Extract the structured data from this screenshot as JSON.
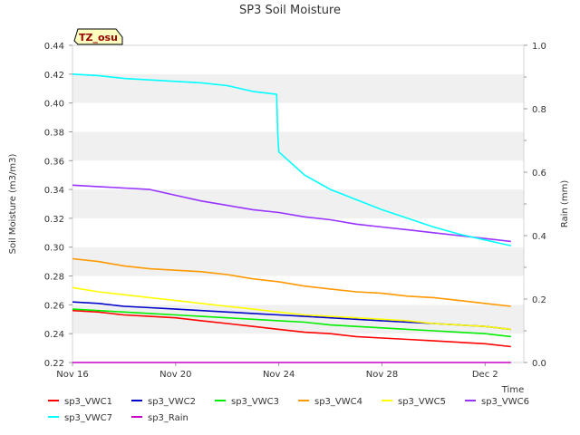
{
  "chart_data": {
    "type": "line",
    "title": "SP3 Soil Moisture",
    "xlabel": "Time",
    "ylabel": "Soil Moisture (m3/m3)",
    "y2label": "Rain (mm)",
    "badge": "TZ_osu",
    "xlim": [
      "2023-11-16",
      "2023-12-03 12:00"
    ],
    "ylim": [
      0.22,
      0.44
    ],
    "y2lim": [
      0.0,
      1.0
    ],
    "x_ticks": [
      "Nov 16",
      "Nov 20",
      "Nov 24",
      "Nov 28",
      "Dec 2"
    ],
    "y_ticks": [
      "0.22",
      "0.24",
      "0.26",
      "0.28",
      "0.30",
      "0.32",
      "0.34",
      "0.36",
      "0.38",
      "0.40",
      "0.42",
      "0.44"
    ],
    "y2_ticks": [
      "0.0",
      "0.2",
      "0.4",
      "0.6",
      "0.8",
      "1.0"
    ],
    "grid": "horizontal-bands",
    "legend_position": "bottom",
    "x": [
      "2023-11-16",
      "2023-11-17",
      "2023-11-18",
      "2023-11-19",
      "2023-11-20",
      "2023-11-21",
      "2023-11-22",
      "2023-11-23",
      "2023-11-24",
      "2023-11-25",
      "2023-11-26",
      "2023-11-27",
      "2023-11-28",
      "2023-11-29",
      "2023-11-30",
      "2023-12-01",
      "2023-12-02",
      "2023-12-03"
    ],
    "series": [
      {
        "name": "sp3_VWC1",
        "color": "#ff0000",
        "axis": "left",
        "values": [
          0.256,
          0.255,
          0.253,
          0.252,
          0.251,
          0.249,
          0.247,
          0.245,
          0.243,
          0.241,
          0.24,
          0.238,
          0.237,
          0.236,
          0.235,
          0.234,
          0.233,
          0.231
        ]
      },
      {
        "name": "sp3_VWC2",
        "color": "#0000cc",
        "axis": "left",
        "values": [
          0.262,
          0.261,
          0.259,
          0.258,
          0.257,
          0.256,
          0.255,
          0.254,
          0.253,
          0.252,
          0.251,
          0.25,
          0.249,
          0.248,
          0.247,
          0.246,
          0.245,
          0.243
        ]
      },
      {
        "name": "sp3_VWC3",
        "color": "#00ee00",
        "axis": "left",
        "values": [
          0.257,
          0.256,
          0.255,
          0.254,
          0.253,
          0.252,
          0.251,
          0.25,
          0.249,
          0.248,
          0.246,
          0.245,
          0.244,
          0.243,
          0.242,
          0.241,
          0.24,
          0.238
        ]
      },
      {
        "name": "sp3_VWC4",
        "color": "#ff9900",
        "axis": "left",
        "values": [
          0.292,
          0.29,
          0.287,
          0.285,
          0.284,
          0.283,
          0.281,
          0.278,
          0.276,
          0.273,
          0.271,
          0.269,
          0.268,
          0.266,
          0.265,
          0.263,
          0.261,
          0.259
        ]
      },
      {
        "name": "sp3_VWC5",
        "color": "#ffff00",
        "axis": "left",
        "values": [
          0.272,
          0.269,
          0.267,
          0.265,
          0.263,
          0.261,
          0.259,
          0.257,
          0.255,
          0.253,
          0.252,
          0.251,
          0.25,
          0.249,
          0.247,
          0.246,
          0.245,
          0.243
        ]
      },
      {
        "name": "sp3_VWC6",
        "color": "#9933ff",
        "axis": "left",
        "values": [
          0.343,
          0.342,
          0.341,
          0.34,
          0.336,
          0.332,
          0.329,
          0.326,
          0.324,
          0.321,
          0.319,
          0.316,
          0.314,
          0.312,
          0.31,
          0.308,
          0.306,
          0.304
        ]
      },
      {
        "name": "sp3_VWC7",
        "color": "#00ffff",
        "axis": "left",
        "x": [
          "2023-11-16",
          "2023-11-17",
          "2023-11-18",
          "2023-11-19",
          "2023-11-20",
          "2023-11-21",
          "2023-11-22",
          "2023-11-23",
          "2023-11-23 22:00",
          "2023-11-23 23:00",
          "2023-11-24",
          "2023-11-25",
          "2023-11-26",
          "2023-11-27",
          "2023-11-28",
          "2023-11-29",
          "2023-11-30",
          "2023-12-01",
          "2023-12-02",
          "2023-12-03"
        ],
        "values": [
          0.42,
          0.419,
          0.417,
          0.416,
          0.415,
          0.414,
          0.412,
          0.408,
          0.406,
          0.378,
          0.366,
          0.35,
          0.34,
          0.333,
          0.326,
          0.32,
          0.314,
          0.309,
          0.305,
          0.301
        ]
      },
      {
        "name": "sp3_Rain",
        "color": "#cc00cc",
        "axis": "right",
        "values": [
          0.0,
          0.0,
          0.0,
          0.0,
          0.0,
          0.0,
          0.0,
          0.0,
          0.0,
          0.0,
          0.0,
          0.0,
          0.0,
          0.0,
          0.0,
          0.0,
          0.0,
          0.0
        ]
      }
    ]
  }
}
